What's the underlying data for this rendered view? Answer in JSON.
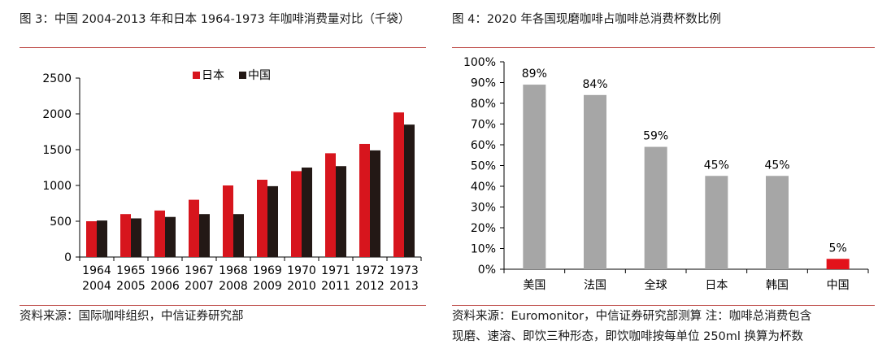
{
  "colors": {
    "japan": "#d7151d",
    "china": "#231815",
    "gray": "#a6a6a6",
    "highlight": "#e3121b",
    "rule": "#c0504d"
  },
  "left": {
    "title": "图 3：中国 2004-2013 年和日本 1964-1973 年咖啡消费量对比（千袋）",
    "source": "资料来源：国际咖啡组织，中信证券研究部"
  },
  "right": {
    "title": "图 4：2020 年各国现磨咖啡占咖啡总消费杯数比例",
    "source_line1": "资料来源：Euromonitor，中信证券研究部测算  注：咖啡总消费包含",
    "source_line2": "现磨、速溶、即饮三种形态，即饮咖啡按每单位 250ml 换算为杯数"
  },
  "chart_data": [
    {
      "type": "bar",
      "title": "中国 2004-2013 年和日本 1964-1973 年咖啡消费量对比（千袋）",
      "categories_top": [
        "1964",
        "1965",
        "1966",
        "1967",
        "1968",
        "1969",
        "1970",
        "1971",
        "1972",
        "1973"
      ],
      "categories_bottom": [
        "2004",
        "2005",
        "2006",
        "2007",
        "2008",
        "2009",
        "2010",
        "2011",
        "2012",
        "2013"
      ],
      "series": [
        {
          "name": "日本",
          "color": "#d7151d",
          "values": [
            500,
            600,
            650,
            800,
            1000,
            1080,
            1200,
            1450,
            1580,
            2020
          ]
        },
        {
          "name": "中国",
          "color": "#231815",
          "values": [
            510,
            540,
            560,
            600,
            600,
            990,
            1250,
            1270,
            1490,
            1850
          ]
        }
      ],
      "ylim": [
        0,
        2500
      ],
      "yticks": [
        0,
        500,
        1000,
        1500,
        2000,
        2500
      ],
      "ytick_labels": [
        "0",
        "500",
        "1000",
        "1500",
        "2000",
        "2500"
      ],
      "legend_position": "top-center"
    },
    {
      "type": "bar",
      "title": "2020 年各国现磨咖啡占咖啡总消费杯数比例",
      "categories": [
        "美国",
        "法国",
        "全球",
        "日本",
        "韩国",
        "中国"
      ],
      "values": [
        89,
        84,
        59,
        45,
        45,
        5
      ],
      "data_labels": [
        "89%",
        "84%",
        "59%",
        "45%",
        "45%",
        "5%"
      ],
      "bar_colors": [
        "#a6a6a6",
        "#a6a6a6",
        "#a6a6a6",
        "#a6a6a6",
        "#a6a6a6",
        "#e3121b"
      ],
      "ylim": [
        0,
        100
      ],
      "yticks": [
        0,
        10,
        20,
        30,
        40,
        50,
        60,
        70,
        80,
        90,
        100
      ],
      "ytick_labels": [
        "0%",
        "10%",
        "20%",
        "30%",
        "40%",
        "50%",
        "60%",
        "70%",
        "80%",
        "90%",
        "100%"
      ]
    }
  ]
}
